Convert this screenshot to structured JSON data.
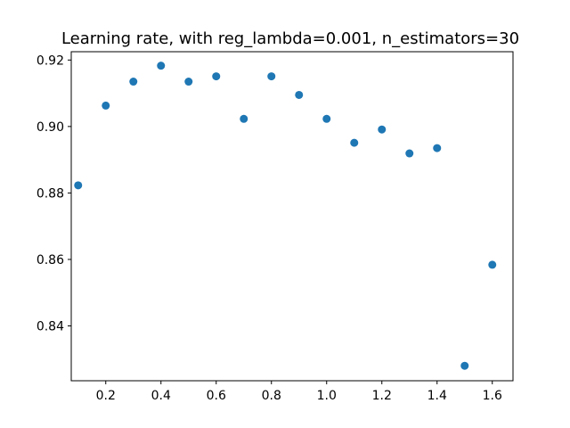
{
  "chart_data": {
    "type": "scatter",
    "title": "Learning rate, with reg_lambda=0.001, n_estimators=30",
    "xlabel": "",
    "ylabel": "",
    "xlim": [
      0.075,
      1.675
    ],
    "ylim": [
      0.8235,
      0.9225
    ],
    "grid": false,
    "x_ticks": [
      {
        "value": 0.2,
        "label": "0.2"
      },
      {
        "value": 0.4,
        "label": "0.4"
      },
      {
        "value": 0.6,
        "label": "0.6"
      },
      {
        "value": 0.8,
        "label": "0.8"
      },
      {
        "value": 1.0,
        "label": "1.0"
      },
      {
        "value": 1.2,
        "label": "1.2"
      },
      {
        "value": 1.4,
        "label": "1.4"
      },
      {
        "value": 1.6,
        "label": "1.6"
      }
    ],
    "y_ticks": [
      {
        "value": 0.84,
        "label": "0.84"
      },
      {
        "value": 0.86,
        "label": "0.86"
      },
      {
        "value": 0.88,
        "label": "0.88"
      },
      {
        "value": 0.9,
        "label": "0.90"
      },
      {
        "value": 0.92,
        "label": "0.92"
      }
    ],
    "series": [
      {
        "color": "#1f77b4",
        "x": [
          0.1,
          0.2,
          0.3,
          0.4,
          0.5,
          0.6,
          0.7,
          0.8,
          0.9,
          1.0,
          1.1,
          1.2,
          1.3,
          1.4,
          1.5,
          1.6
        ],
        "y": [
          0.8823,
          0.9063,
          0.9135,
          0.9183,
          0.9135,
          0.9151,
          0.9023,
          0.9151,
          0.9095,
          0.9023,
          0.8951,
          0.8991,
          0.8919,
          0.8935,
          0.828,
          0.8584
        ]
      }
    ]
  }
}
